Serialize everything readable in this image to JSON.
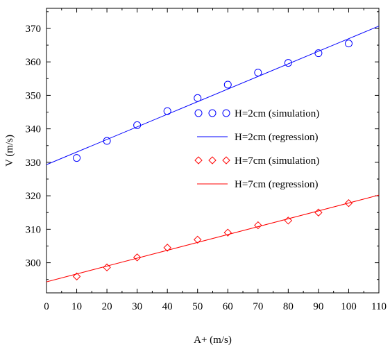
{
  "chart_data": {
    "type": "scatter",
    "title": "",
    "xlabel": "A+ (m/s)",
    "ylabel": "V (m/s)",
    "xlim": [
      0,
      110
    ],
    "ylim": [
      291,
      376
    ],
    "x_ticks": [
      0,
      10,
      20,
      30,
      40,
      50,
      60,
      70,
      80,
      90,
      100,
      110
    ],
    "y_ticks": [
      300,
      310,
      320,
      330,
      340,
      350,
      360,
      370
    ],
    "grid": false,
    "legend_position": "right-middle",
    "series": [
      {
        "name": "H=2cm (simulation)",
        "kind": "markers",
        "marker": "circle",
        "color": "#0000ff",
        "x": [
          10,
          20,
          30,
          40,
          50,
          60,
          70,
          80,
          90,
          100
        ],
        "y": [
          331.3,
          336.4,
          341.1,
          345.3,
          349.2,
          353.2,
          356.8,
          359.7,
          362.6,
          365.5
        ]
      },
      {
        "name": "H=2cm (regression)",
        "kind": "line",
        "color": "#0000ff",
        "x": [
          0,
          110
        ],
        "y": [
          329.3,
          370.7
        ]
      },
      {
        "name": "H=7cm (simulation)",
        "kind": "markers",
        "marker": "diamond",
        "color": "#ff0000",
        "x": [
          10,
          20,
          30,
          40,
          50,
          60,
          70,
          80,
          90,
          100
        ],
        "y": [
          295.9,
          298.6,
          301.6,
          304.5,
          306.9,
          309.0,
          311.2,
          312.6,
          315.0,
          317.8
        ]
      },
      {
        "name": "H=7cm (regression)",
        "kind": "line",
        "color": "#ff0000",
        "x": [
          0,
          110
        ],
        "y": [
          294.3,
          320.2
        ]
      }
    ]
  }
}
